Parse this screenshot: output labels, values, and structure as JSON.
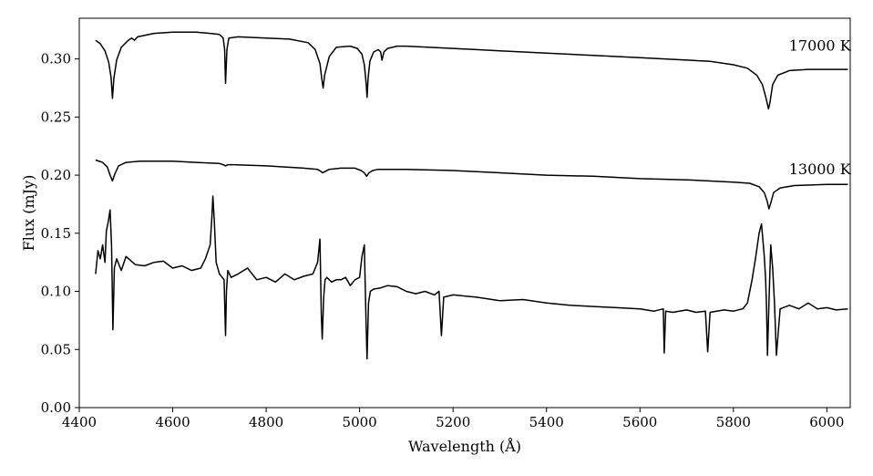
{
  "chart_data": {
    "type": "line",
    "title": "",
    "xlabel": "Wavelength (Å)",
    "ylabel": "Flux (mJy)",
    "xlim": [
      4400,
      6050
    ],
    "ylim": [
      0.0,
      0.335
    ],
    "x_ticks": [
      4400,
      4600,
      4800,
      5000,
      5200,
      5400,
      5600,
      5800,
      6000
    ],
    "x_tick_labels": [
      "4400",
      "4600",
      "4800",
      "5000",
      "5200",
      "5400",
      "5600",
      "5800",
      "6000"
    ],
    "y_ticks": [
      0.0,
      0.05,
      0.1,
      0.15,
      0.2,
      0.25,
      0.3
    ],
    "y_tick_labels": [
      "0.00",
      "0.05",
      "0.10",
      "0.15",
      "0.20",
      "0.25",
      "0.30"
    ],
    "grid": false,
    "line_color": "#000000",
    "annotations": [
      {
        "text": "17000 K",
        "x": 5985,
        "y": 0.307
      },
      {
        "text": "13000 K",
        "x": 5985,
        "y": 0.201
      }
    ],
    "series": [
      {
        "x": [
          4435,
          4445,
          4455,
          4463,
          4468,
          4471,
          4474,
          4480,
          4490,
          4505,
          4512,
          4518,
          4525,
          4560,
          4600,
          4650,
          4680,
          4700,
          4708,
          4711,
          4713,
          4716,
          4720,
          4740,
          4800,
          4850,
          4890,
          4905,
          4915,
          4919,
          4922,
          4925,
          4935,
          4950,
          4980,
          4995,
          5005,
          5010,
          5014,
          5016,
          5018,
          5022,
          5030,
          5040,
          5045,
          5048,
          5052,
          5060,
          5080,
          5100,
          5200,
          5300,
          5400,
          5500,
          5600,
          5700,
          5750,
          5800,
          5830,
          5850,
          5862,
          5870,
          5875,
          5878,
          5884,
          5895,
          5920,
          5960,
          6000,
          6045
        ],
        "y": [
          0.316,
          0.313,
          0.307,
          0.297,
          0.284,
          0.266,
          0.283,
          0.299,
          0.31,
          0.316,
          0.318,
          0.316,
          0.319,
          0.322,
          0.323,
          0.323,
          0.322,
          0.321,
          0.318,
          0.308,
          0.279,
          0.308,
          0.318,
          0.319,
          0.318,
          0.317,
          0.314,
          0.308,
          0.296,
          0.283,
          0.275,
          0.286,
          0.302,
          0.31,
          0.311,
          0.309,
          0.304,
          0.295,
          0.279,
          0.267,
          0.283,
          0.298,
          0.306,
          0.308,
          0.306,
          0.299,
          0.306,
          0.309,
          0.311,
          0.311,
          0.309,
          0.307,
          0.305,
          0.303,
          0.301,
          0.299,
          0.298,
          0.295,
          0.292,
          0.286,
          0.278,
          0.266,
          0.257,
          0.262,
          0.278,
          0.286,
          0.29,
          0.291,
          0.291,
          0.291
        ]
      },
      {
        "x": [
          4435,
          4450,
          4460,
          4466,
          4471,
          4476,
          4484,
          4500,
          4530,
          4600,
          4650,
          4700,
          4708,
          4713,
          4718,
          4730,
          4800,
          4880,
          4910,
          4918,
          4921,
          4925,
          4935,
          4960,
          4990,
          5003,
          5010,
          5015,
          5020,
          5028,
          5040,
          5060,
          5100,
          5200,
          5300,
          5400,
          5500,
          5600,
          5700,
          5800,
          5835,
          5855,
          5866,
          5872,
          5876,
          5880,
          5886,
          5900,
          5930,
          6000,
          6045
        ],
        "y": [
          0.213,
          0.211,
          0.207,
          0.2,
          0.195,
          0.201,
          0.208,
          0.211,
          0.212,
          0.212,
          0.211,
          0.21,
          0.209,
          0.208,
          0.209,
          0.209,
          0.208,
          0.206,
          0.205,
          0.203,
          0.202,
          0.203,
          0.205,
          0.206,
          0.206,
          0.204,
          0.202,
          0.199,
          0.202,
          0.204,
          0.205,
          0.205,
          0.205,
          0.204,
          0.202,
          0.2,
          0.199,
          0.197,
          0.196,
          0.194,
          0.193,
          0.19,
          0.185,
          0.178,
          0.171,
          0.176,
          0.185,
          0.189,
          0.191,
          0.192,
          0.192
        ]
      },
      {
        "x": [
          4435,
          4440,
          4445,
          4450,
          4455,
          4458,
          4462,
          4466,
          4469,
          4472,
          4475,
          4480,
          4490,
          4500,
          4520,
          4540,
          4560,
          4580,
          4600,
          4620,
          4640,
          4660,
          4670,
          4680,
          4684,
          4686,
          4689,
          4693,
          4700,
          4710,
          4713,
          4715,
          4718,
          4725,
          4740,
          4760,
          4780,
          4800,
          4820,
          4840,
          4860,
          4880,
          4900,
          4910,
          4915,
          4918,
          4920,
          4923,
          4926,
          4930,
          4940,
          4950,
          4960,
          4970,
          4980,
          4990,
          5000,
          5005,
          5010,
          5014,
          5016,
          5019,
          5023,
          5030,
          5045,
          5060,
          5080,
          5100,
          5120,
          5140,
          5160,
          5170,
          5175,
          5180,
          5200,
          5250,
          5300,
          5350,
          5400,
          5450,
          5500,
          5550,
          5600,
          5630,
          5650,
          5652,
          5655,
          5670,
          5700,
          5720,
          5740,
          5745,
          5750,
          5780,
          5800,
          5820,
          5830,
          5840,
          5848,
          5855,
          5860,
          5863,
          5866,
          5869,
          5871,
          5873,
          5876,
          5880,
          5884,
          5888,
          5892,
          5900,
          5920,
          5940,
          5960,
          5980,
          6000,
          6020,
          6045
        ],
        "y": [
          0.115,
          0.135,
          0.128,
          0.14,
          0.125,
          0.152,
          0.16,
          0.17,
          0.14,
          0.067,
          0.12,
          0.128,
          0.118,
          0.13,
          0.123,
          0.122,
          0.125,
          0.126,
          0.12,
          0.122,
          0.118,
          0.12,
          0.128,
          0.14,
          0.165,
          0.182,
          0.16,
          0.125,
          0.115,
          0.11,
          0.062,
          0.1,
          0.118,
          0.112,
          0.115,
          0.12,
          0.11,
          0.112,
          0.108,
          0.115,
          0.11,
          0.113,
          0.115,
          0.125,
          0.145,
          0.08,
          0.059,
          0.095,
          0.11,
          0.112,
          0.108,
          0.11,
          0.11,
          0.112,
          0.105,
          0.11,
          0.112,
          0.13,
          0.14,
          0.07,
          0.042,
          0.09,
          0.1,
          0.102,
          0.103,
          0.105,
          0.104,
          0.1,
          0.098,
          0.1,
          0.097,
          0.1,
          0.062,
          0.095,
          0.097,
          0.095,
          0.092,
          0.093,
          0.09,
          0.088,
          0.087,
          0.086,
          0.085,
          0.083,
          0.085,
          0.047,
          0.083,
          0.082,
          0.084,
          0.082,
          0.083,
          0.048,
          0.082,
          0.084,
          0.083,
          0.085,
          0.09,
          0.11,
          0.13,
          0.15,
          0.158,
          0.145,
          0.13,
          0.11,
          0.085,
          0.045,
          0.09,
          0.14,
          0.12,
          0.09,
          0.045,
          0.085,
          0.088,
          0.085,
          0.09,
          0.085,
          0.086,
          0.084,
          0.085
        ]
      }
    ]
  }
}
